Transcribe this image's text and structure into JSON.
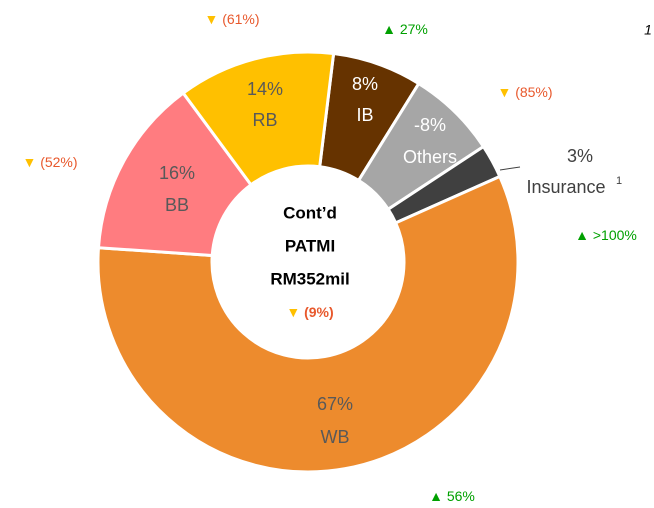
{
  "chart_data": {
    "type": "donut",
    "categories": [
      "IB",
      "Others",
      "Insurance",
      "WB",
      "BB",
      "RB"
    ],
    "values": [
      8,
      -8,
      3,
      67,
      16,
      14
    ],
    "value_labels": [
      "8%",
      "-8%",
      "3%",
      "67%",
      "16%",
      "14%"
    ],
    "colors": [
      "#663300",
      "#A6A6A6",
      "#404040",
      "#ED8B2D",
      "#FF7C80",
      "#FFC000"
    ],
    "changes": [
      "▲ 27%",
      "▼ (85%)",
      "▲ >100%",
      "▲ 56%",
      "▼ (52%)",
      "▼ (61%)"
    ],
    "center_text": [
      "Cont’d",
      "PATMI",
      "RM352mil"
    ],
    "center_change": "▼ (9%)",
    "footnote_marker": "1"
  }
}
